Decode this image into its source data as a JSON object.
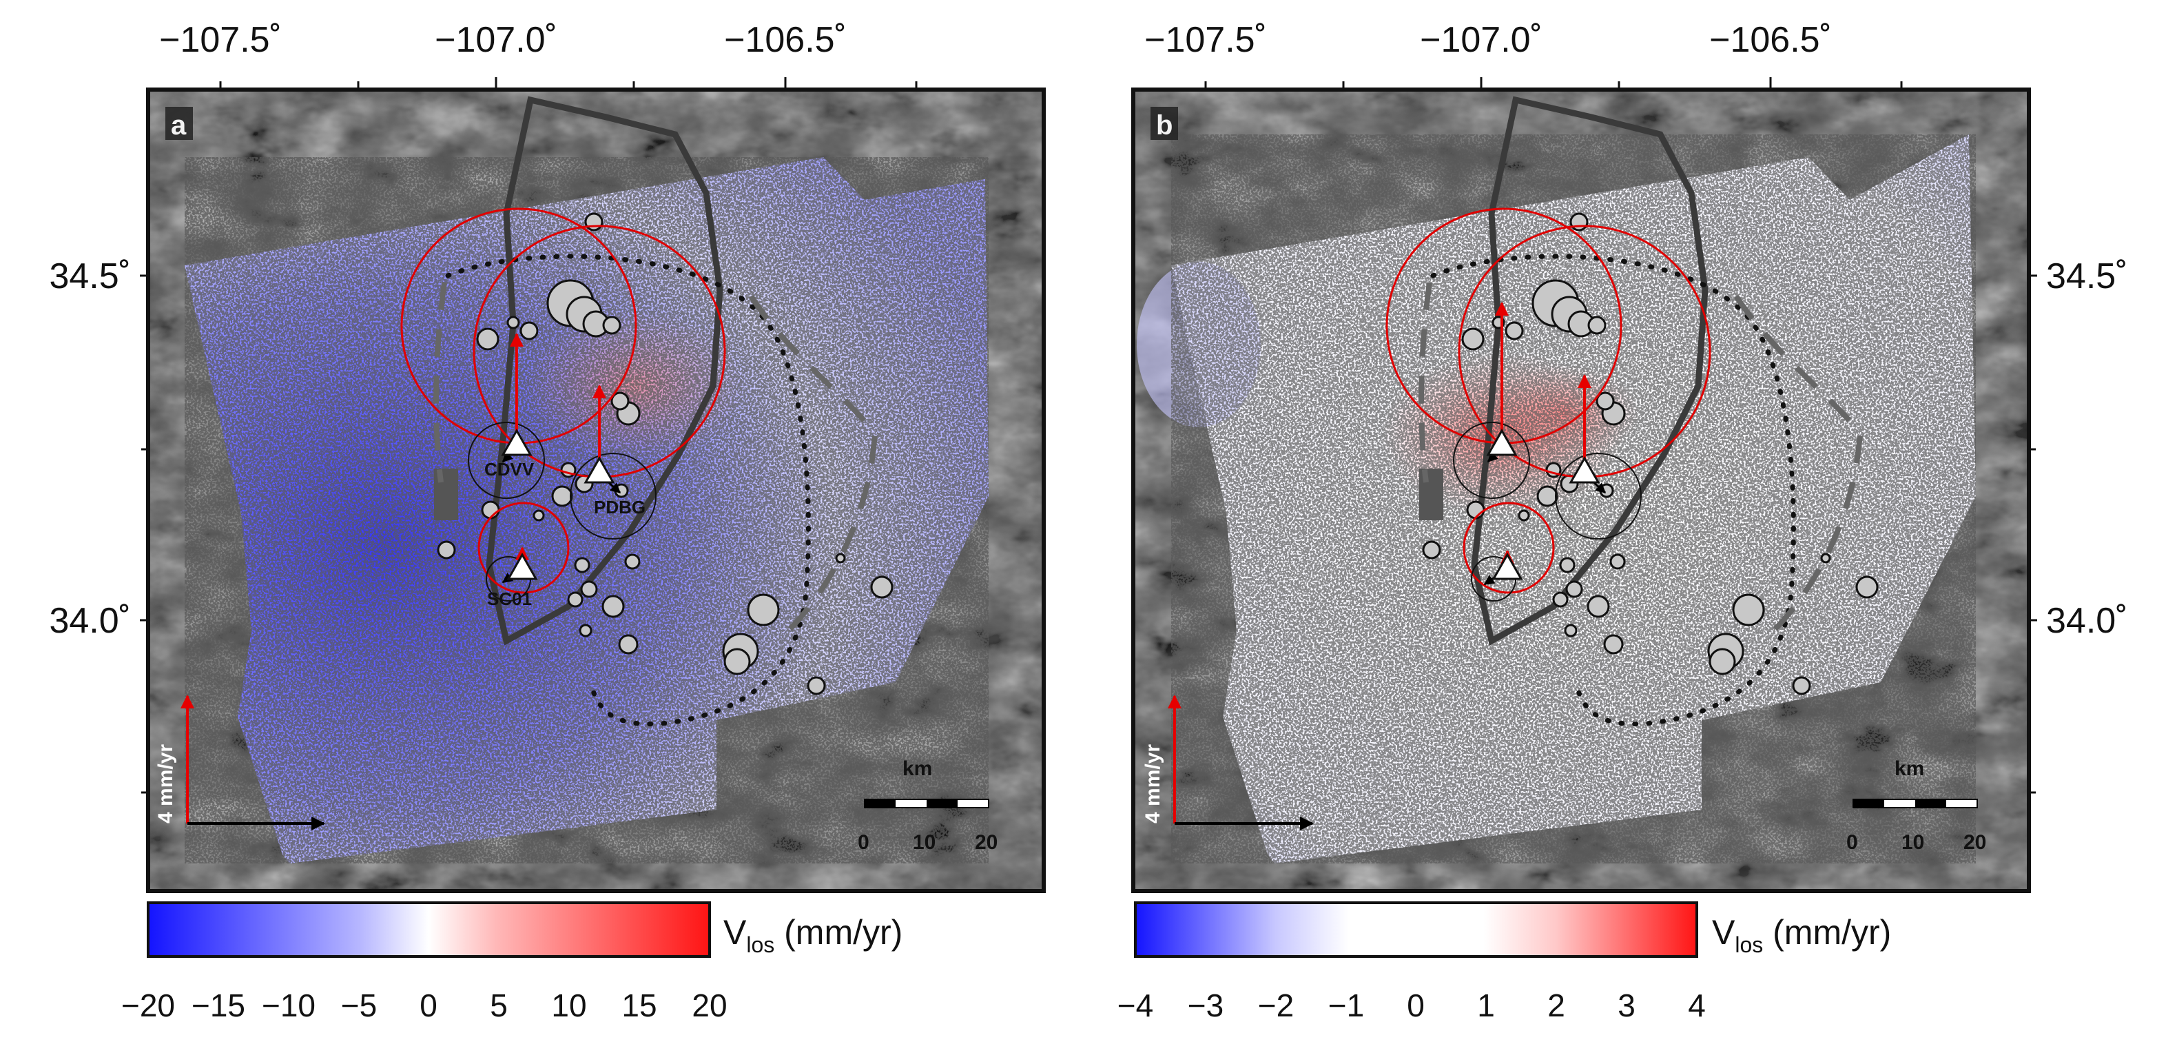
{
  "colors": {
    "frame": "#111111",
    "terrain_dark": "#3f3f3f",
    "terrain_light": "#8c8c8c",
    "blue": "#1a1aff",
    "white": "#ffffff",
    "red": "#ff1a1a",
    "gps_vertical_arrow": "#e60000",
    "gps_horizontal_arrow": "#000000",
    "uncertainty_circle": "#e00000",
    "outline": "#3a3a3a",
    "earthquake_fill": "#c8c8c8"
  },
  "panels": [
    {
      "id": "a",
      "label": "a",
      "lon_ticks": [
        "−107.5˚",
        "−107.0˚",
        "−106.5˚"
      ],
      "lat_ticks": [
        "34.5˚",
        "34.0˚"
      ],
      "lat_side": "left",
      "stations": [
        "CDVV",
        "PDBG",
        "SC01"
      ],
      "legend_arrow_label": "4 mm/yr",
      "scale_bar": {
        "unit": "km",
        "ticks": [
          "0",
          "10",
          "20"
        ]
      },
      "colorbar": {
        "label_main": "V",
        "label_sub": "los",
        "label_unit": " (mm/yr)",
        "ticks": [
          "−20",
          "−15",
          "−10",
          "−5",
          "0",
          "5",
          "10",
          "15",
          "20"
        ],
        "range": [
          -20,
          20
        ]
      }
    },
    {
      "id": "b",
      "label": "b",
      "lon_ticks": [
        "−107.5˚",
        "−107.0˚",
        "−106.5˚"
      ],
      "lat_ticks": [
        "34.5˚",
        "34.0˚"
      ],
      "lat_side": "right",
      "stations": [],
      "legend_arrow_label": "4 mm/yr",
      "scale_bar": {
        "unit": "km",
        "ticks": [
          "0",
          "10",
          "20"
        ]
      },
      "colorbar": {
        "label_main": "V",
        "label_sub": "los",
        "label_unit": " (mm/yr)",
        "ticks": [
          "−4",
          "−3",
          "−2",
          "−1",
          "0",
          "1",
          "2",
          "3",
          "4"
        ],
        "range": [
          -4,
          4
        ]
      }
    }
  ]
}
